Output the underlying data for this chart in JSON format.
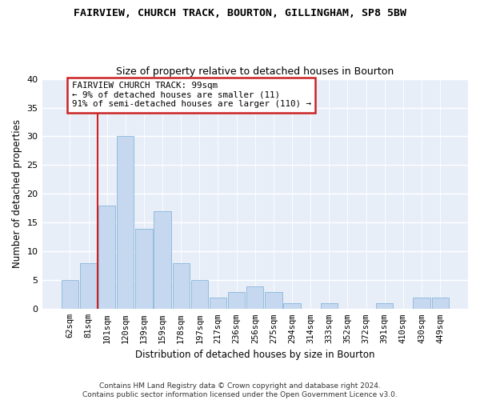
{
  "title1": "FAIRVIEW, CHURCH TRACK, BOURTON, GILLINGHAM, SP8 5BW",
  "title2": "Size of property relative to detached houses in Bourton",
  "xlabel": "Distribution of detached houses by size in Bourton",
  "ylabel": "Number of detached properties",
  "categories": [
    "62sqm",
    "81sqm",
    "101sqm",
    "120sqm",
    "139sqm",
    "159sqm",
    "178sqm",
    "197sqm",
    "217sqm",
    "236sqm",
    "256sqm",
    "275sqm",
    "294sqm",
    "314sqm",
    "333sqm",
    "352sqm",
    "372sqm",
    "391sqm",
    "410sqm",
    "430sqm",
    "449sqm"
  ],
  "values": [
    5,
    8,
    18,
    30,
    14,
    17,
    8,
    5,
    2,
    3,
    4,
    3,
    1,
    0,
    1,
    0,
    0,
    1,
    0,
    2,
    2
  ],
  "bar_color": "#c5d8f0",
  "bar_edge_color": "#7aadd4",
  "highlight_color": "#cc2222",
  "annotation_line1": "FAIRVIEW CHURCH TRACK: 99sqm",
  "annotation_line2": "← 9% of detached houses are smaller (11)",
  "annotation_line3": "91% of semi-detached houses are larger (110) →",
  "annotation_box_color": "#ffffff",
  "annotation_box_edge": "#cc2222",
  "ylim": [
    0,
    40
  ],
  "yticks": [
    0,
    5,
    10,
    15,
    20,
    25,
    30,
    35,
    40
  ],
  "footer": "Contains HM Land Registry data © Crown copyright and database right 2024.\nContains public sector information licensed under the Open Government Licence v3.0.",
  "background_color": "#e8eef8",
  "grid_color": "#ffffff"
}
